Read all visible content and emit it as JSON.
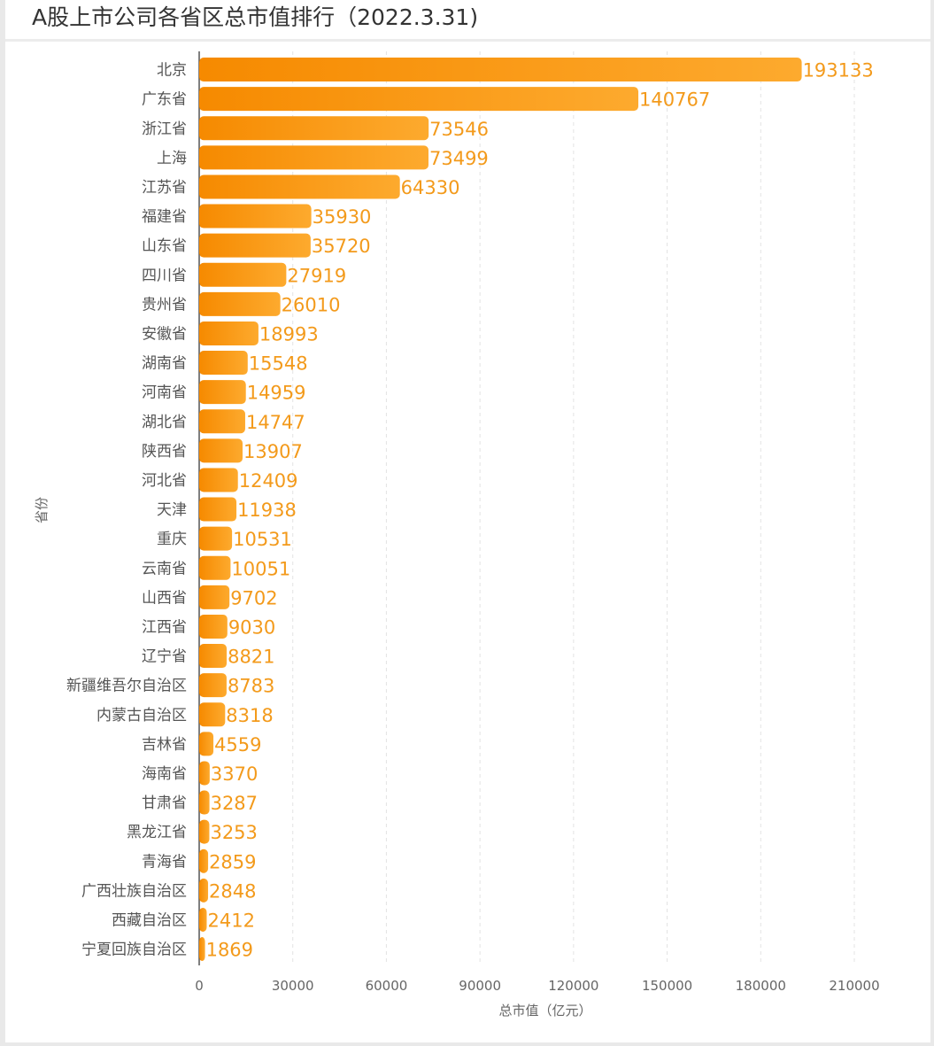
{
  "title": "A股上市公司各省区总市值排行（2022.3.31)",
  "chart_data": {
    "type": "bar",
    "orientation": "horizontal",
    "title": "A股上市公司各省区总市值排行（2022.3.31)",
    "xlabel": "总市值（亿元）",
    "ylabel": "省份",
    "xlim": [
      0,
      210000
    ],
    "xticks": [
      0,
      30000,
      60000,
      90000,
      120000,
      150000,
      180000,
      210000
    ],
    "grid": true,
    "color": "#f7941d",
    "categories": [
      "北京",
      "广东省",
      "浙江省",
      "上海",
      "江苏省",
      "福建省",
      "山东省",
      "四川省",
      "贵州省",
      "安徽省",
      "湖南省",
      "河南省",
      "湖北省",
      "陕西省",
      "河北省",
      "天津",
      "重庆",
      "云南省",
      "山西省",
      "江西省",
      "辽宁省",
      "新疆维吾尔自治区",
      "内蒙古自治区",
      "吉林省",
      "海南省",
      "甘肃省",
      "黑龙江省",
      "青海省",
      "广西壮族自治区",
      "西藏自治区",
      "宁夏回族自治区"
    ],
    "values": [
      193133,
      140767,
      73546,
      73499,
      64330,
      35930,
      35720,
      27919,
      26010,
      18993,
      15548,
      14959,
      14747,
      13907,
      12409,
      11938,
      10531,
      10051,
      9702,
      9030,
      8821,
      8783,
      8318,
      4559,
      3370,
      3287,
      3253,
      2859,
      2848,
      2412,
      1869
    ]
  }
}
